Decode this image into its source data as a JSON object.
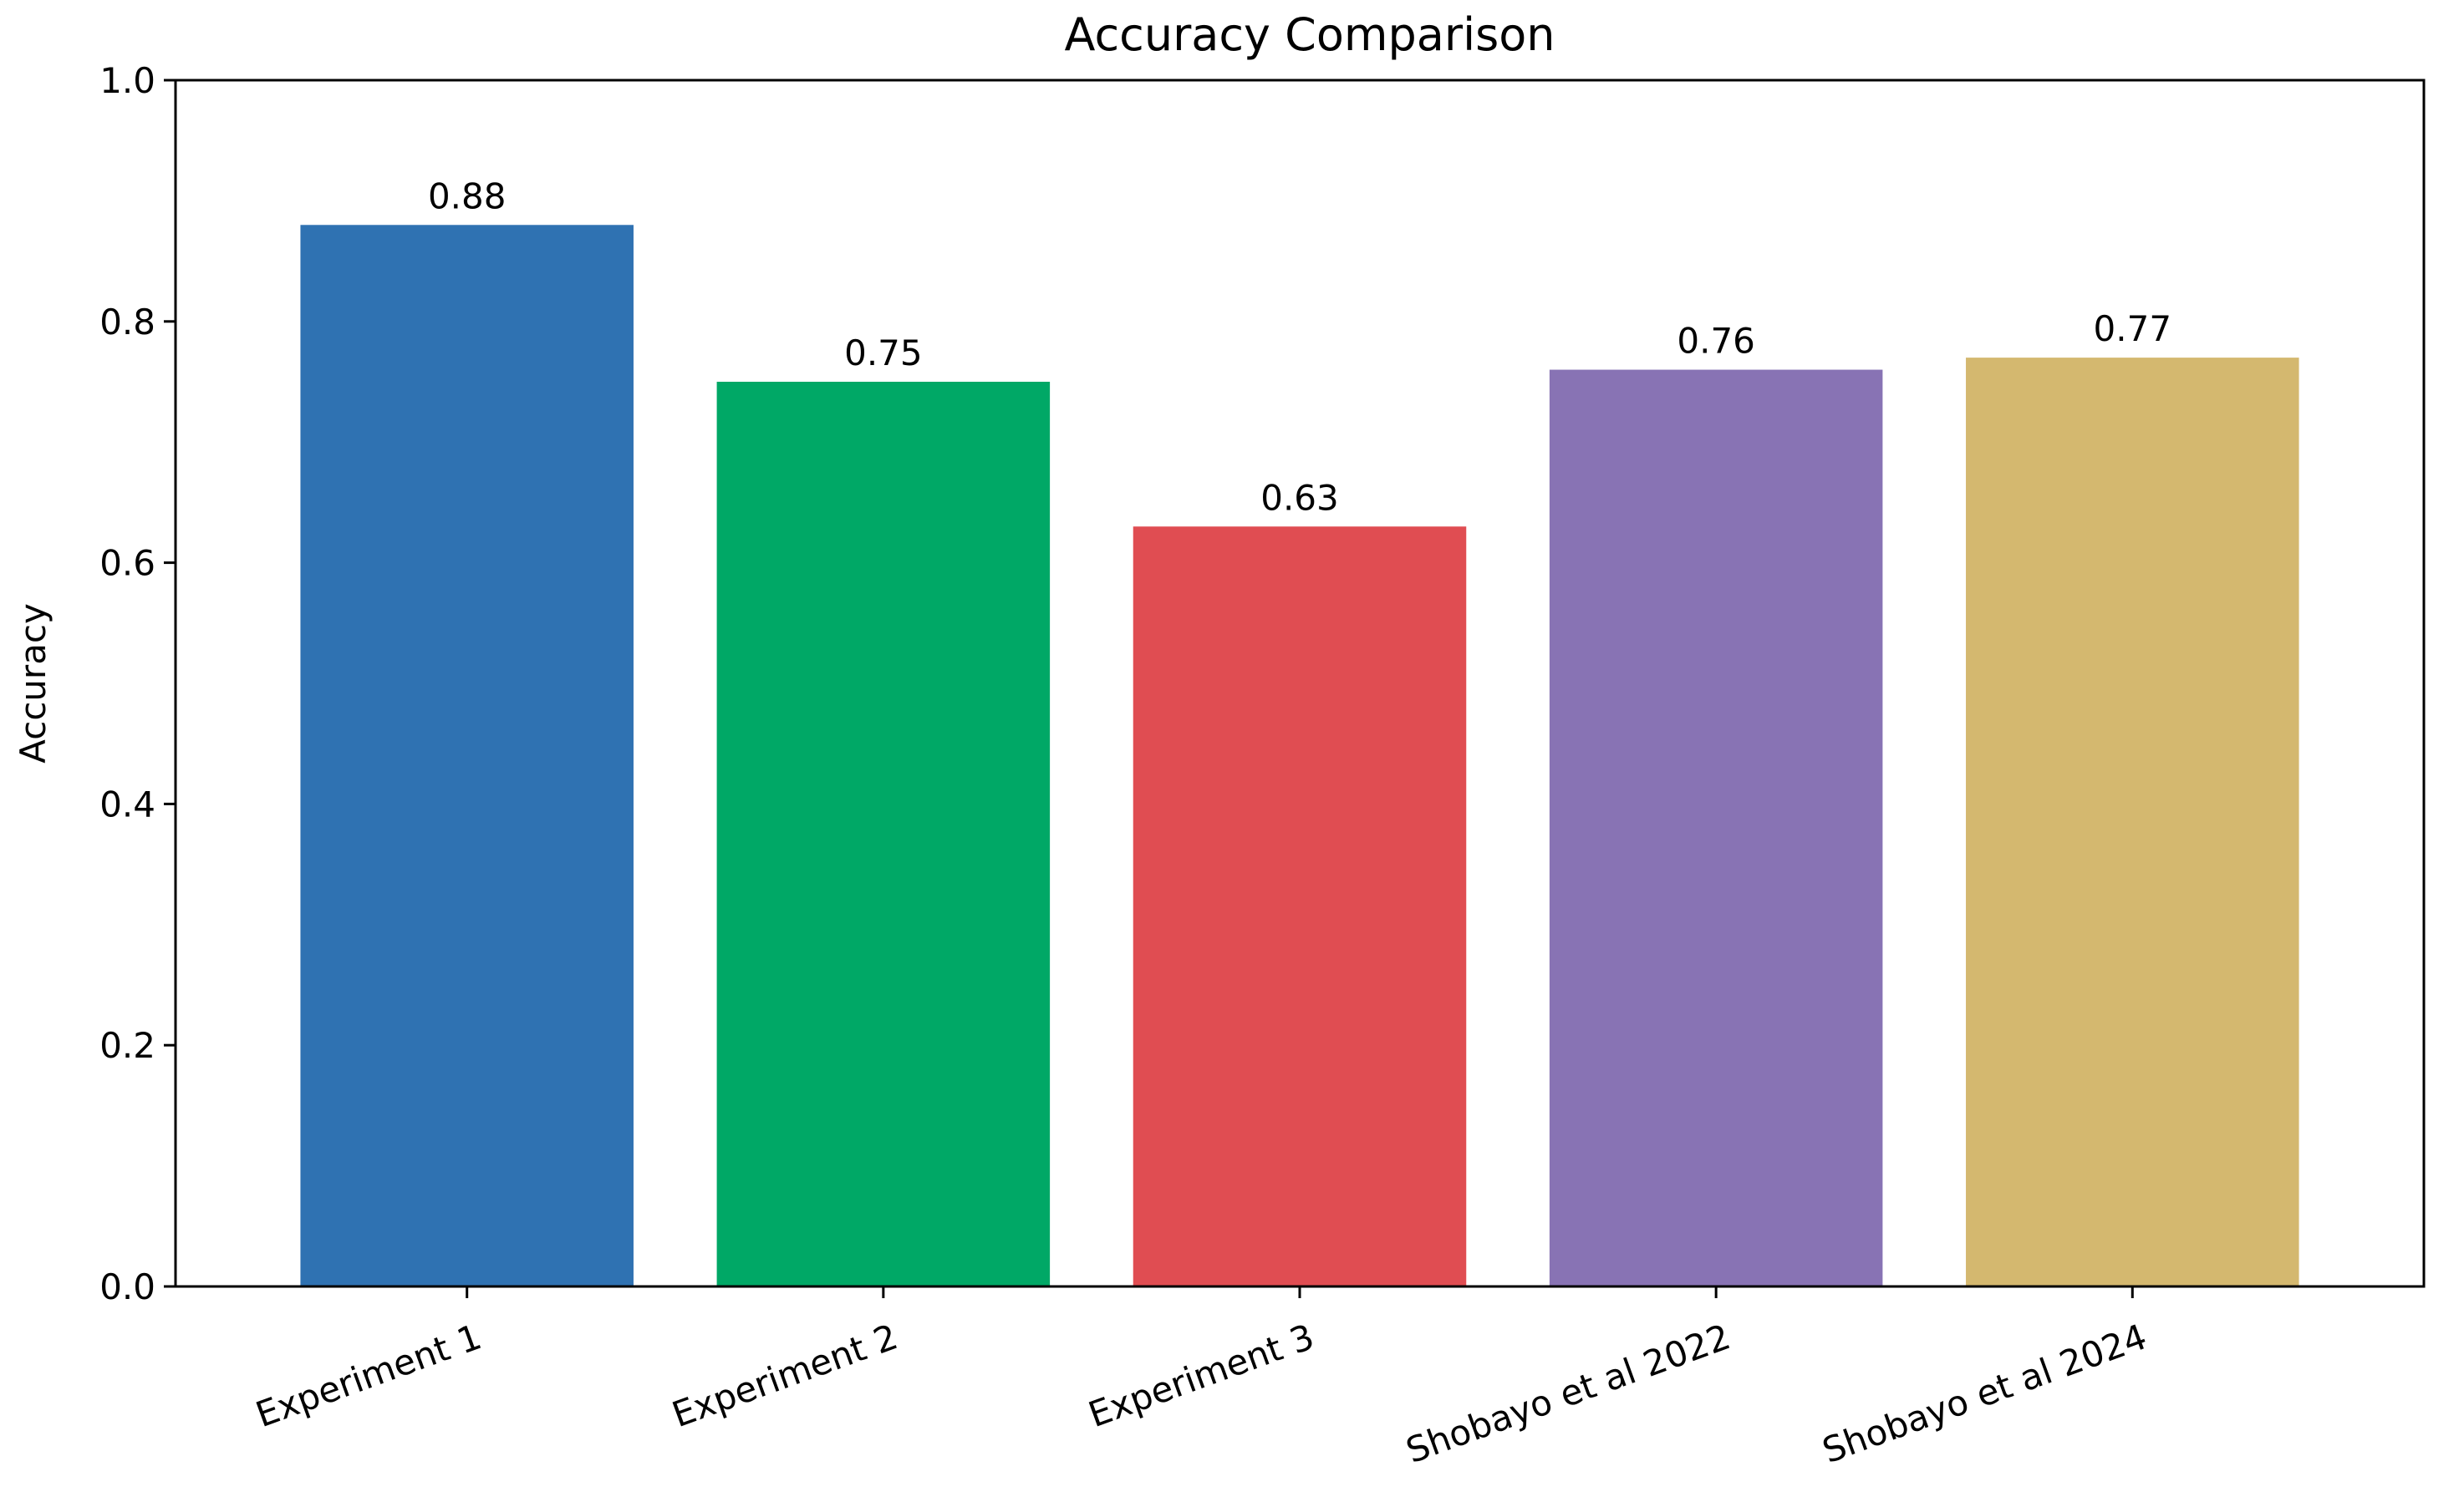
{
  "chart_data": {
    "type": "bar",
    "title": "Accuracy Comparison",
    "xlabel": "",
    "ylabel": "Accuracy",
    "ylim": [
      0,
      1.0
    ],
    "yticks": [
      0.0,
      0.2,
      0.4,
      0.6,
      0.8,
      1.0
    ],
    "ytick_labels": [
      "0.0",
      "0.2",
      "0.4",
      "0.6",
      "0.8",
      "1.0"
    ],
    "categories": [
      "Experiment 1",
      "Experiment 2",
      "Experiment 3",
      "Shobayo et al 2022",
      "Shobayo et al 2024"
    ],
    "values": [
      0.88,
      0.75,
      0.63,
      0.76,
      0.77
    ],
    "value_labels": [
      "0.88",
      "0.75",
      "0.63",
      "0.76",
      "0.77"
    ],
    "colors": [
      "#2f72b2",
      "#00a866",
      "#e04d52",
      "#8873b4",
      "#d4b86f"
    ],
    "grid": false,
    "legend": "none"
  }
}
